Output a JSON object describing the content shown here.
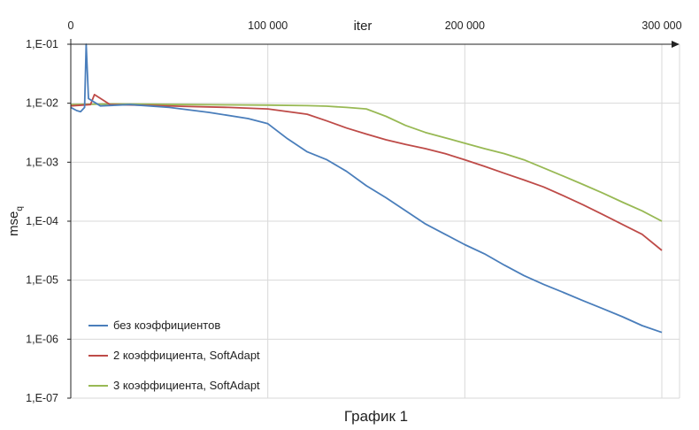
{
  "chart_data": {
    "type": "line",
    "title": "График 1",
    "xlabel": "iter",
    "ylabel": "mse",
    "ylabel_subscript": "q",
    "x_axis_position": "top",
    "y_scale": "log",
    "xlim": [
      0,
      300000
    ],
    "ylim": [
      1e-07,
      0.1
    ],
    "x_ticks": [
      0,
      100000,
      200000,
      300000
    ],
    "x_tick_labels": [
      "0",
      "100 000",
      "200 000",
      "300 000"
    ],
    "y_ticks": [
      0.1,
      0.01,
      0.001,
      0.0001,
      1e-05,
      1e-06,
      1e-07
    ],
    "y_tick_labels": [
      "1,E-01",
      "1,E-02",
      "1,E-03",
      "1,E-04",
      "1,E-05",
      "1,E-06",
      "1,E-07"
    ],
    "grid": true,
    "legend_position": "bottom-left",
    "series": [
      {
        "name": "без коэффициентов",
        "color": "#4a7ebb",
        "x": [
          0,
          3000,
          5000,
          7000,
          7800,
          9000,
          15000,
          30000,
          50000,
          70000,
          90000,
          100000,
          110000,
          120000,
          130000,
          140000,
          150000,
          160000,
          170000,
          180000,
          190000,
          200000,
          210000,
          220000,
          230000,
          240000,
          250000,
          260000,
          270000,
          280000,
          290000,
          300000
        ],
        "values": [
          0.0085,
          0.0075,
          0.0072,
          0.0085,
          0.1,
          0.012,
          0.009,
          0.0095,
          0.0085,
          0.007,
          0.0055,
          0.0045,
          0.0025,
          0.0015,
          0.0011,
          0.0007,
          0.0004,
          0.00025,
          0.00015,
          9e-05,
          6e-05,
          4e-05,
          2.8e-05,
          1.8e-05,
          1.2e-05,
          8.5e-06,
          6.2e-06,
          4.5e-06,
          3.3e-06,
          2.4e-06,
          1.7e-06,
          1.3e-06
        ]
      },
      {
        "name": "2 коэффициента, SoftAdapt",
        "color": "#be4b48",
        "x": [
          0,
          10000,
          12000,
          20000,
          40000,
          60000,
          80000,
          100000,
          120000,
          130000,
          140000,
          150000,
          160000,
          170000,
          180000,
          190000,
          200000,
          210000,
          220000,
          230000,
          240000,
          250000,
          260000,
          270000,
          280000,
          290000,
          300000
        ],
        "values": [
          0.009,
          0.0095,
          0.014,
          0.0095,
          0.0092,
          0.0088,
          0.0085,
          0.008,
          0.0065,
          0.005,
          0.0038,
          0.003,
          0.0024,
          0.002,
          0.0017,
          0.0014,
          0.0011,
          0.00085,
          0.00065,
          0.0005,
          0.00038,
          0.00027,
          0.00019,
          0.00013,
          8.8e-05,
          6e-05,
          3.2e-05
        ]
      },
      {
        "name": "3 коэффициента, SoftAdapt",
        "color": "#98b954",
        "x": [
          0,
          20000,
          40000,
          60000,
          80000,
          100000,
          120000,
          130000,
          140000,
          150000,
          160000,
          170000,
          180000,
          190000,
          200000,
          210000,
          220000,
          230000,
          240000,
          250000,
          260000,
          270000,
          280000,
          290000,
          300000
        ],
        "values": [
          0.0095,
          0.0097,
          0.0096,
          0.0095,
          0.0094,
          0.0093,
          0.0091,
          0.0089,
          0.0085,
          0.008,
          0.006,
          0.0042,
          0.0032,
          0.0026,
          0.0021,
          0.0017,
          0.0014,
          0.0011,
          0.0008,
          0.00058,
          0.00042,
          0.0003,
          0.00021,
          0.00015,
          0.0001
        ]
      }
    ]
  }
}
